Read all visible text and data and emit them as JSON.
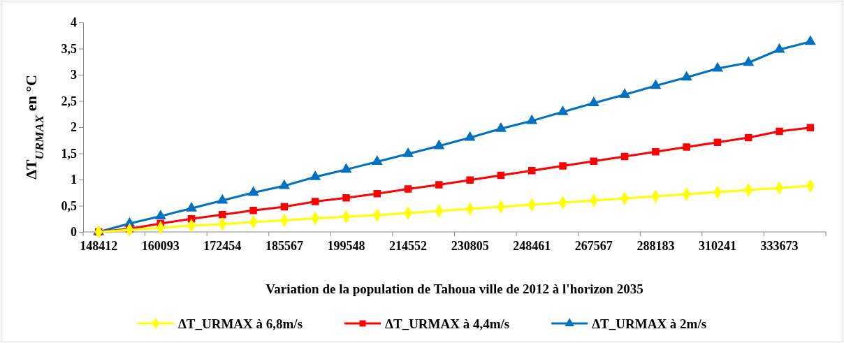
{
  "chart_data": {
    "type": "line",
    "xlabel": "Variation de la population de Tahoua ville  de 2012 à l'horizon 2035",
    "ylabel": "ΔT$_{URMAX}$  en  °C",
    "categories": [
      "148412",
      null,
      "160093",
      null,
      "172454",
      null,
      "185567",
      null,
      "199548",
      null,
      "214552",
      null,
      "230805",
      null,
      "248461",
      null,
      "267567",
      null,
      "288183",
      null,
      "310241",
      null,
      "333673",
      null
    ],
    "ylim": [
      0,
      4
    ],
    "yticks": [
      0,
      {
        "value": 0.5,
        "label": "0,5"
      },
      1,
      {
        "value": 1.5,
        "label": "1,5"
      },
      2,
      {
        "value": 2.5,
        "label": "2,5"
      },
      3,
      {
        "value": 3.5,
        "label": "3,5"
      },
      4
    ],
    "grid": false,
    "legend": "bottom",
    "line_style": "solid",
    "series": [
      {
        "name": "ΔT_URMAX à 6,8m/s",
        "color": "#ffff00",
        "marker": "diamond",
        "values": [
          0,
          0.04,
          0.08,
          0.12,
          0.15,
          0.19,
          0.22,
          0.26,
          0.29,
          0.32,
          0.36,
          0.4,
          0.44,
          0.48,
          0.52,
          0.56,
          0.6,
          0.64,
          0.68,
          0.72,
          0.76,
          0.8,
          0.84,
          0.88
        ]
      },
      {
        "name": "ΔT_URMAX à 4,4m/s",
        "color": "#ff0000",
        "marker": "square",
        "values": [
          0,
          0.06,
          0.16,
          0.25,
          0.33,
          0.41,
          0.48,
          0.58,
          0.65,
          0.73,
          0.82,
          0.9,
          0.99,
          1.08,
          1.17,
          1.26,
          1.35,
          1.44,
          1.53,
          1.62,
          1.71,
          1.8,
          1.92,
          1.99
        ]
      },
      {
        "name": "ΔT_URMAX à 2m/s",
        "color": "#0070c0",
        "marker": "triangle",
        "values": [
          0,
          0.16,
          0.3,
          0.45,
          0.6,
          0.75,
          0.88,
          1.05,
          1.19,
          1.34,
          1.49,
          1.64,
          1.8,
          1.97,
          2.12,
          2.29,
          2.46,
          2.62,
          2.79,
          2.95,
          3.12,
          3.23,
          3.48,
          3.63
        ]
      }
    ]
  }
}
